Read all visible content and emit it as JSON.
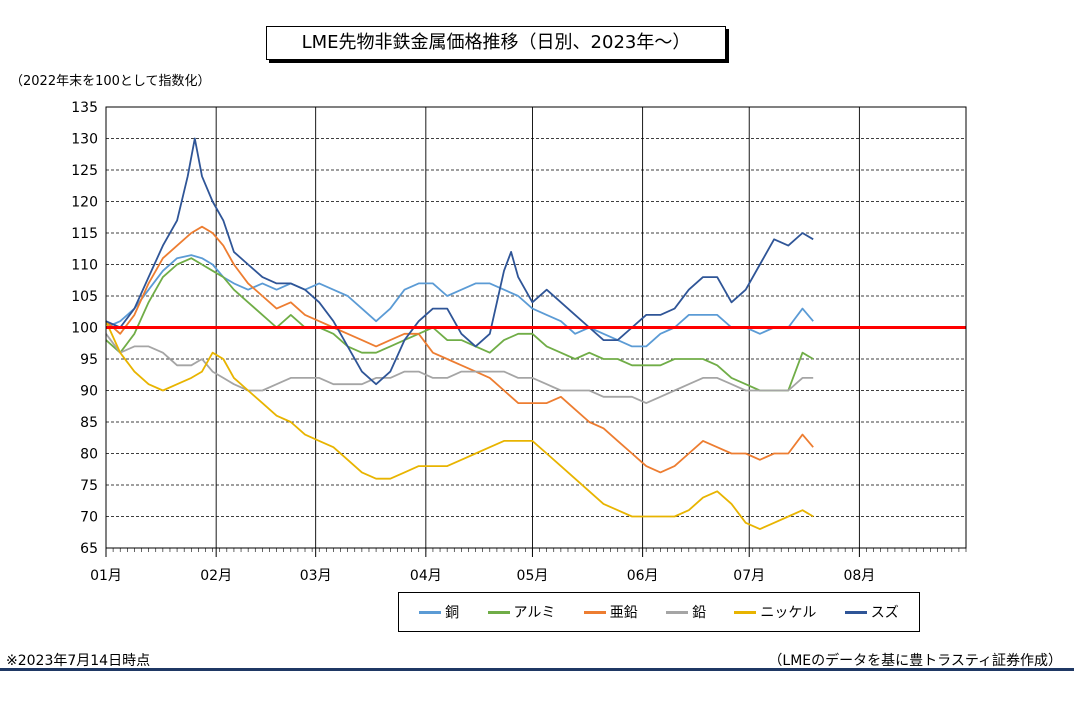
{
  "title": "LME先物非鉄金属価格推移（日別、2023年～）",
  "subtitle": "（2022年末を100として指数化）",
  "note": "※2023年7月14日時点",
  "source": "（LMEのデータを基に豊トラスティ証券作成）",
  "chart_data": {
    "type": "line",
    "ylim": [
      65,
      135
    ],
    "yticks": [
      65,
      70,
      75,
      80,
      85,
      90,
      95,
      100,
      105,
      110,
      115,
      120,
      125,
      130,
      135
    ],
    "xticks": [
      "01月",
      "02月",
      "03月",
      "04月",
      "05月",
      "06月",
      "07月",
      "08月"
    ],
    "x_range_days": [
      0,
      242
    ],
    "month_starts": [
      0,
      31,
      59,
      90,
      120,
      151,
      181,
      212
    ],
    "reference_line": 100,
    "grid": true,
    "legend_position": "bottom",
    "series": [
      {
        "name": "銅",
        "color": "#5b9bd5",
        "points": [
          [
            0,
            100
          ],
          [
            4,
            101
          ],
          [
            8,
            103
          ],
          [
            12,
            106
          ],
          [
            16,
            109
          ],
          [
            20,
            111
          ],
          [
            24,
            111.5
          ],
          [
            27,
            111
          ],
          [
            30,
            110
          ],
          [
            33,
            108
          ],
          [
            36,
            107
          ],
          [
            40,
            106
          ],
          [
            44,
            107
          ],
          [
            48,
            106
          ],
          [
            52,
            107
          ],
          [
            56,
            106
          ],
          [
            60,
            107
          ],
          [
            64,
            106
          ],
          [
            68,
            105
          ],
          [
            72,
            103
          ],
          [
            76,
            101
          ],
          [
            80,
            103
          ],
          [
            84,
            106
          ],
          [
            88,
            107
          ],
          [
            92,
            107
          ],
          [
            96,
            105
          ],
          [
            100,
            106
          ],
          [
            104,
            107
          ],
          [
            108,
            107
          ],
          [
            112,
            106
          ],
          [
            116,
            105
          ],
          [
            120,
            103
          ],
          [
            124,
            102
          ],
          [
            128,
            101
          ],
          [
            132,
            99
          ],
          [
            136,
            100
          ],
          [
            140,
            99
          ],
          [
            144,
            98
          ],
          [
            148,
            97
          ],
          [
            152,
            97
          ],
          [
            156,
            99
          ],
          [
            160,
            100
          ],
          [
            164,
            102
          ],
          [
            168,
            102
          ],
          [
            172,
            102
          ],
          [
            176,
            100
          ],
          [
            180,
            100
          ],
          [
            184,
            99
          ],
          [
            188,
            100
          ],
          [
            192,
            100
          ],
          [
            196,
            103
          ],
          [
            199,
            101
          ]
        ]
      },
      {
        "name": "アルミ",
        "color": "#70ad47",
        "points": [
          [
            0,
            98
          ],
          [
            4,
            96
          ],
          [
            8,
            99
          ],
          [
            12,
            104
          ],
          [
            16,
            108
          ],
          [
            20,
            110
          ],
          [
            24,
            111
          ],
          [
            27,
            110
          ],
          [
            30,
            109
          ],
          [
            33,
            108
          ],
          [
            36,
            106
          ],
          [
            40,
            104
          ],
          [
            44,
            102
          ],
          [
            48,
            100
          ],
          [
            52,
            102
          ],
          [
            56,
            100
          ],
          [
            60,
            100
          ],
          [
            64,
            99
          ],
          [
            68,
            97
          ],
          [
            72,
            96
          ],
          [
            76,
            96
          ],
          [
            80,
            97
          ],
          [
            84,
            98
          ],
          [
            88,
            99
          ],
          [
            92,
            100
          ],
          [
            96,
            98
          ],
          [
            100,
            98
          ],
          [
            104,
            97
          ],
          [
            108,
            96
          ],
          [
            112,
            98
          ],
          [
            116,
            99
          ],
          [
            120,
            99
          ],
          [
            124,
            97
          ],
          [
            128,
            96
          ],
          [
            132,
            95
          ],
          [
            136,
            96
          ],
          [
            140,
            95
          ],
          [
            144,
            95
          ],
          [
            148,
            94
          ],
          [
            152,
            94
          ],
          [
            156,
            94
          ],
          [
            160,
            95
          ],
          [
            164,
            95
          ],
          [
            168,
            95
          ],
          [
            172,
            94
          ],
          [
            176,
            92
          ],
          [
            180,
            91
          ],
          [
            184,
            90
          ],
          [
            188,
            90
          ],
          [
            192,
            90
          ],
          [
            196,
            96
          ],
          [
            199,
            95
          ]
        ]
      },
      {
        "name": "亜鉛",
        "color": "#ed7d31",
        "points": [
          [
            0,
            101
          ],
          [
            4,
            99
          ],
          [
            8,
            102
          ],
          [
            12,
            107
          ],
          [
            16,
            111
          ],
          [
            20,
            113
          ],
          [
            24,
            115
          ],
          [
            27,
            116
          ],
          [
            30,
            115
          ],
          [
            33,
            113
          ],
          [
            36,
            110
          ],
          [
            40,
            107
          ],
          [
            44,
            105
          ],
          [
            48,
            103
          ],
          [
            52,
            104
          ],
          [
            56,
            102
          ],
          [
            60,
            101
          ],
          [
            64,
            100
          ],
          [
            68,
            99
          ],
          [
            72,
            98
          ],
          [
            76,
            97
          ],
          [
            80,
            98
          ],
          [
            84,
            99
          ],
          [
            88,
            99
          ],
          [
            92,
            96
          ],
          [
            96,
            95
          ],
          [
            100,
            94
          ],
          [
            104,
            93
          ],
          [
            108,
            92
          ],
          [
            112,
            90
          ],
          [
            116,
            88
          ],
          [
            120,
            88
          ],
          [
            124,
            88
          ],
          [
            128,
            89
          ],
          [
            132,
            87
          ],
          [
            136,
            85
          ],
          [
            140,
            84
          ],
          [
            144,
            82
          ],
          [
            148,
            80
          ],
          [
            152,
            78
          ],
          [
            156,
            77
          ],
          [
            160,
            78
          ],
          [
            164,
            80
          ],
          [
            168,
            82
          ],
          [
            172,
            81
          ],
          [
            176,
            80
          ],
          [
            180,
            80
          ],
          [
            184,
            79
          ],
          [
            188,
            80
          ],
          [
            192,
            80
          ],
          [
            196,
            83
          ],
          [
            199,
            81
          ]
        ]
      },
      {
        "name": "鉛",
        "color": "#a5a5a5",
        "points": [
          [
            0,
            99
          ],
          [
            4,
            96
          ],
          [
            8,
            97
          ],
          [
            12,
            97
          ],
          [
            16,
            96
          ],
          [
            20,
            94
          ],
          [
            24,
            94
          ],
          [
            27,
            95
          ],
          [
            30,
            93
          ],
          [
            33,
            92
          ],
          [
            36,
            91
          ],
          [
            40,
            90
          ],
          [
            44,
            90
          ],
          [
            48,
            91
          ],
          [
            52,
            92
          ],
          [
            56,
            92
          ],
          [
            60,
            92
          ],
          [
            64,
            91
          ],
          [
            68,
            91
          ],
          [
            72,
            91
          ],
          [
            76,
            92
          ],
          [
            80,
            92
          ],
          [
            84,
            93
          ],
          [
            88,
            93
          ],
          [
            92,
            92
          ],
          [
            96,
            92
          ],
          [
            100,
            93
          ],
          [
            104,
            93
          ],
          [
            108,
            93
          ],
          [
            112,
            93
          ],
          [
            116,
            92
          ],
          [
            120,
            92
          ],
          [
            124,
            91
          ],
          [
            128,
            90
          ],
          [
            132,
            90
          ],
          [
            136,
            90
          ],
          [
            140,
            89
          ],
          [
            144,
            89
          ],
          [
            148,
            89
          ],
          [
            152,
            88
          ],
          [
            156,
            89
          ],
          [
            160,
            90
          ],
          [
            164,
            91
          ],
          [
            168,
            92
          ],
          [
            172,
            92
          ],
          [
            176,
            91
          ],
          [
            180,
            90
          ],
          [
            184,
            90
          ],
          [
            188,
            90
          ],
          [
            192,
            90
          ],
          [
            196,
            92
          ],
          [
            199,
            92
          ]
        ]
      },
      {
        "name": "ニッケル",
        "color": "#e8b400",
        "points": [
          [
            0,
            101
          ],
          [
            4,
            96
          ],
          [
            8,
            93
          ],
          [
            12,
            91
          ],
          [
            16,
            90
          ],
          [
            20,
            91
          ],
          [
            24,
            92
          ],
          [
            27,
            93
          ],
          [
            30,
            96
          ],
          [
            33,
            95
          ],
          [
            36,
            92
          ],
          [
            40,
            90
          ],
          [
            44,
            88
          ],
          [
            48,
            86
          ],
          [
            52,
            85
          ],
          [
            56,
            83
          ],
          [
            60,
            82
          ],
          [
            64,
            81
          ],
          [
            68,
            79
          ],
          [
            72,
            77
          ],
          [
            76,
            76
          ],
          [
            80,
            76
          ],
          [
            84,
            77
          ],
          [
            88,
            78
          ],
          [
            92,
            78
          ],
          [
            96,
            78
          ],
          [
            100,
            79
          ],
          [
            104,
            80
          ],
          [
            108,
            81
          ],
          [
            112,
            82
          ],
          [
            116,
            82
          ],
          [
            120,
            82
          ],
          [
            124,
            80
          ],
          [
            128,
            78
          ],
          [
            132,
            76
          ],
          [
            136,
            74
          ],
          [
            140,
            72
          ],
          [
            144,
            71
          ],
          [
            148,
            70
          ],
          [
            152,
            70
          ],
          [
            156,
            70
          ],
          [
            160,
            70
          ],
          [
            164,
            71
          ],
          [
            168,
            73
          ],
          [
            172,
            74
          ],
          [
            176,
            72
          ],
          [
            180,
            69
          ],
          [
            184,
            68
          ],
          [
            188,
            69
          ],
          [
            192,
            70
          ],
          [
            196,
            71
          ],
          [
            199,
            70
          ]
        ]
      },
      {
        "name": "スズ",
        "color": "#2f5597",
        "points": [
          [
            0,
            101
          ],
          [
            4,
            100
          ],
          [
            8,
            103
          ],
          [
            12,
            108
          ],
          [
            16,
            113
          ],
          [
            20,
            117
          ],
          [
            23,
            124
          ],
          [
            25,
            130
          ],
          [
            27,
            124
          ],
          [
            30,
            120
          ],
          [
            33,
            117
          ],
          [
            36,
            112
          ],
          [
            40,
            110
          ],
          [
            44,
            108
          ],
          [
            48,
            107
          ],
          [
            52,
            107
          ],
          [
            56,
            106
          ],
          [
            60,
            104
          ],
          [
            64,
            101
          ],
          [
            68,
            97
          ],
          [
            72,
            93
          ],
          [
            76,
            91
          ],
          [
            80,
            93
          ],
          [
            84,
            98
          ],
          [
            88,
            101
          ],
          [
            92,
            103
          ],
          [
            96,
            103
          ],
          [
            100,
            99
          ],
          [
            104,
            97
          ],
          [
            108,
            99
          ],
          [
            112,
            109
          ],
          [
            114,
            112
          ],
          [
            116,
            108
          ],
          [
            120,
            104
          ],
          [
            124,
            106
          ],
          [
            128,
            104
          ],
          [
            132,
            102
          ],
          [
            136,
            100
          ],
          [
            140,
            98
          ],
          [
            144,
            98
          ],
          [
            148,
            100
          ],
          [
            152,
            102
          ],
          [
            156,
            102
          ],
          [
            160,
            103
          ],
          [
            164,
            106
          ],
          [
            168,
            108
          ],
          [
            172,
            108
          ],
          [
            176,
            104
          ],
          [
            180,
            106
          ],
          [
            184,
            110
          ],
          [
            188,
            114
          ],
          [
            192,
            113
          ],
          [
            196,
            115
          ],
          [
            199,
            114
          ]
        ]
      }
    ]
  }
}
